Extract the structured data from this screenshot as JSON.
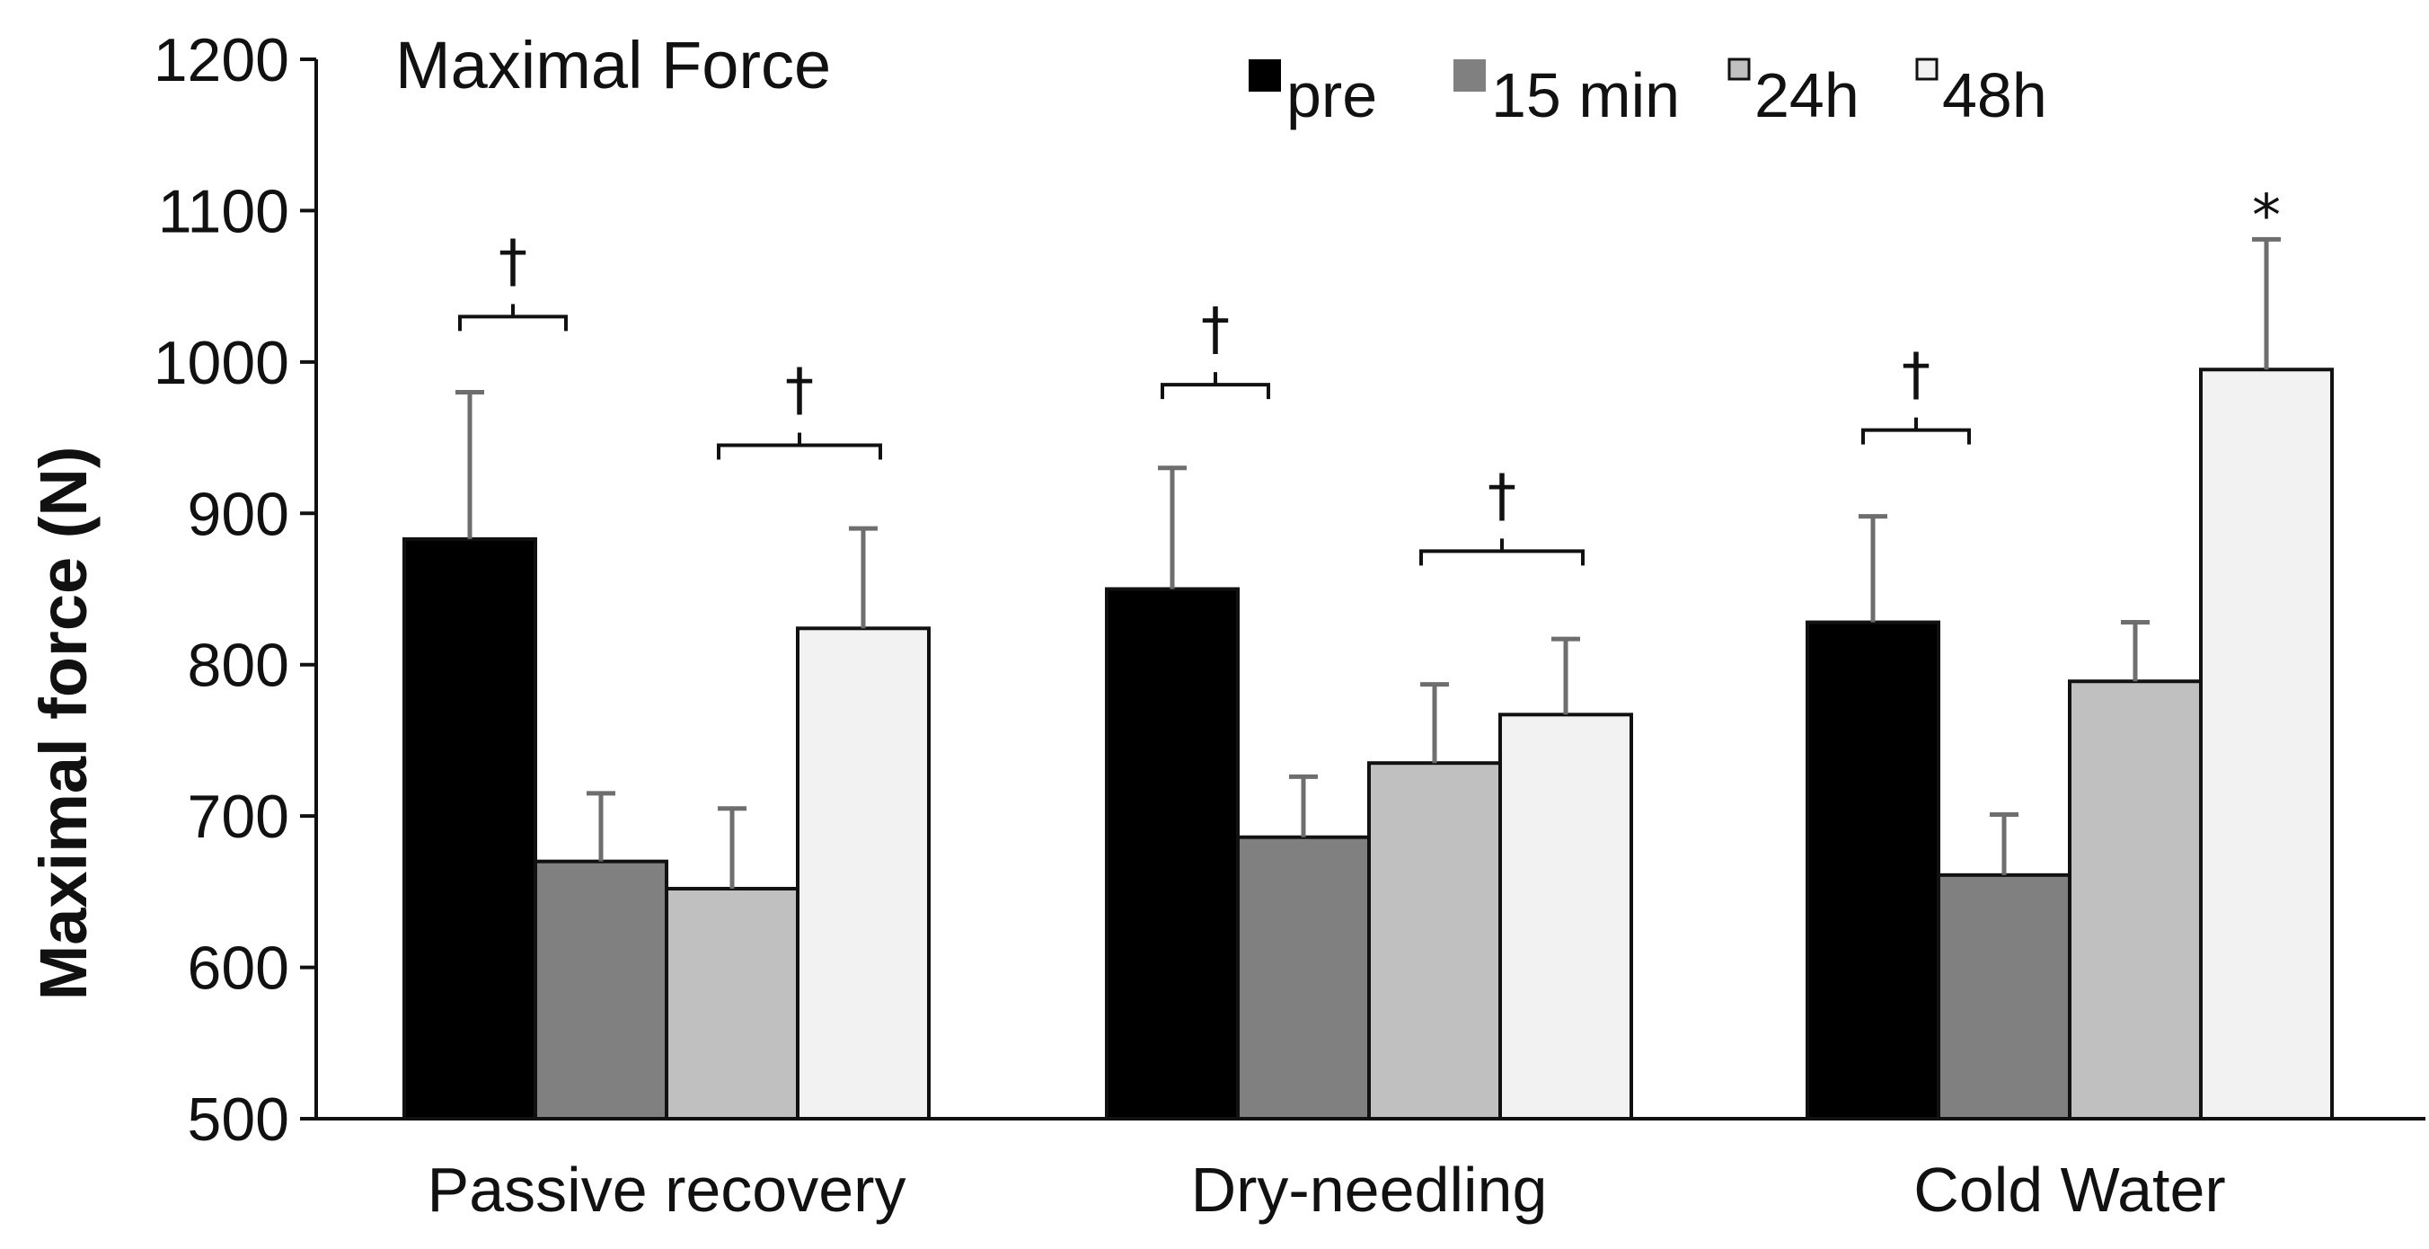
{
  "chart_data": {
    "type": "bar",
    "title": "Maximal Force",
    "xlabel": "",
    "ylabel": "Maximal force (N)",
    "ylim": [
      500,
      1200
    ],
    "yticks": [
      500,
      600,
      700,
      800,
      900,
      1000,
      1100,
      1200
    ],
    "grid": false,
    "legend_position": "top",
    "categories": [
      "Passive recovery",
      "Dry-needling",
      "Cold Water"
    ],
    "series": [
      {
        "name": "pre",
        "color": "#000000",
        "values": [
          883,
          850,
          828
        ],
        "errors": [
          97,
          80,
          70
        ]
      },
      {
        "name": "15 min",
        "color": "#808080",
        "values": [
          670,
          686,
          661
        ],
        "errors": [
          45,
          40,
          40
        ]
      },
      {
        "name": "24h",
        "color": "#c0c0c0",
        "values": [
          652,
          735,
          789
        ],
        "errors": [
          53,
          52,
          39
        ]
      },
      {
        "name": "48h",
        "color": "#f2f2f2",
        "values": [
          824,
          767,
          995
        ],
        "errors": [
          66,
          50,
          86
        ]
      }
    ],
    "annotations": [
      {
        "category": 0,
        "from_series": 0,
        "to_series": 0,
        "symbol": "†",
        "level": 1030
      },
      {
        "category": 0,
        "from_series": 2,
        "to_series": 3,
        "symbol": "†",
        "level": 945
      },
      {
        "category": 1,
        "from_series": 0,
        "to_series": 0,
        "symbol": "†",
        "level": 985
      },
      {
        "category": 1,
        "from_series": 2,
        "to_series": 3,
        "symbol": "†",
        "level": 875
      },
      {
        "category": 2,
        "from_series": 0,
        "to_series": 0,
        "symbol": "†",
        "level": 955
      },
      {
        "category": 2,
        "from_series": 3,
        "to_series": 3,
        "symbol": "*",
        "level": 1105
      }
    ]
  }
}
